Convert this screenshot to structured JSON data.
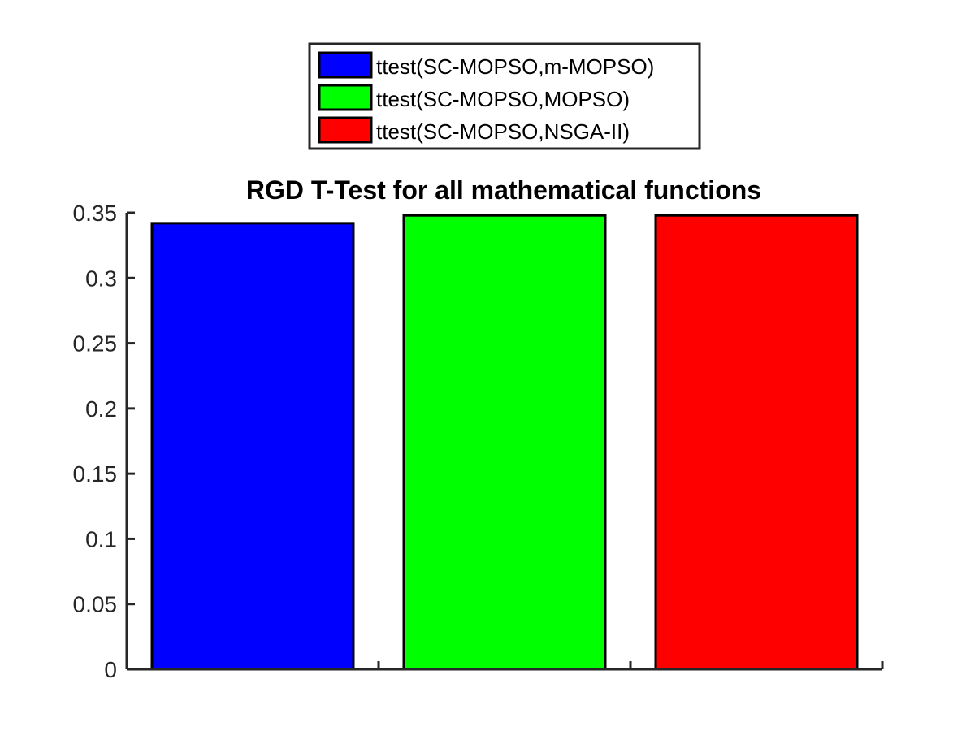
{
  "chart_data": {
    "type": "bar",
    "title": "RGD T-Test for all mathematical functions",
    "xlabel": "",
    "ylabel": "",
    "ylim": [
      0,
      0.35
    ],
    "yticks": [
      0,
      0.05,
      0.1,
      0.15,
      0.2,
      0.25,
      0.3,
      0.35
    ],
    "ytick_labels": [
      "0",
      "0.05",
      "0.1",
      "0.15",
      "0.2",
      "0.25",
      "0.3",
      "0.35"
    ],
    "grid": false,
    "legend_position": "top",
    "series": [
      {
        "name": "ttest(SC-MOPSO,m-MOPSO)",
        "value": 0.342,
        "color": "#0000ff"
      },
      {
        "name": "ttest(SC-MOPSO,MOPSO)",
        "value": 0.348,
        "color": "#00ff00"
      },
      {
        "name": "ttest(SC-MOPSO,NSGA-II)",
        "value": 0.348,
        "color": "#ff0000"
      }
    ]
  }
}
